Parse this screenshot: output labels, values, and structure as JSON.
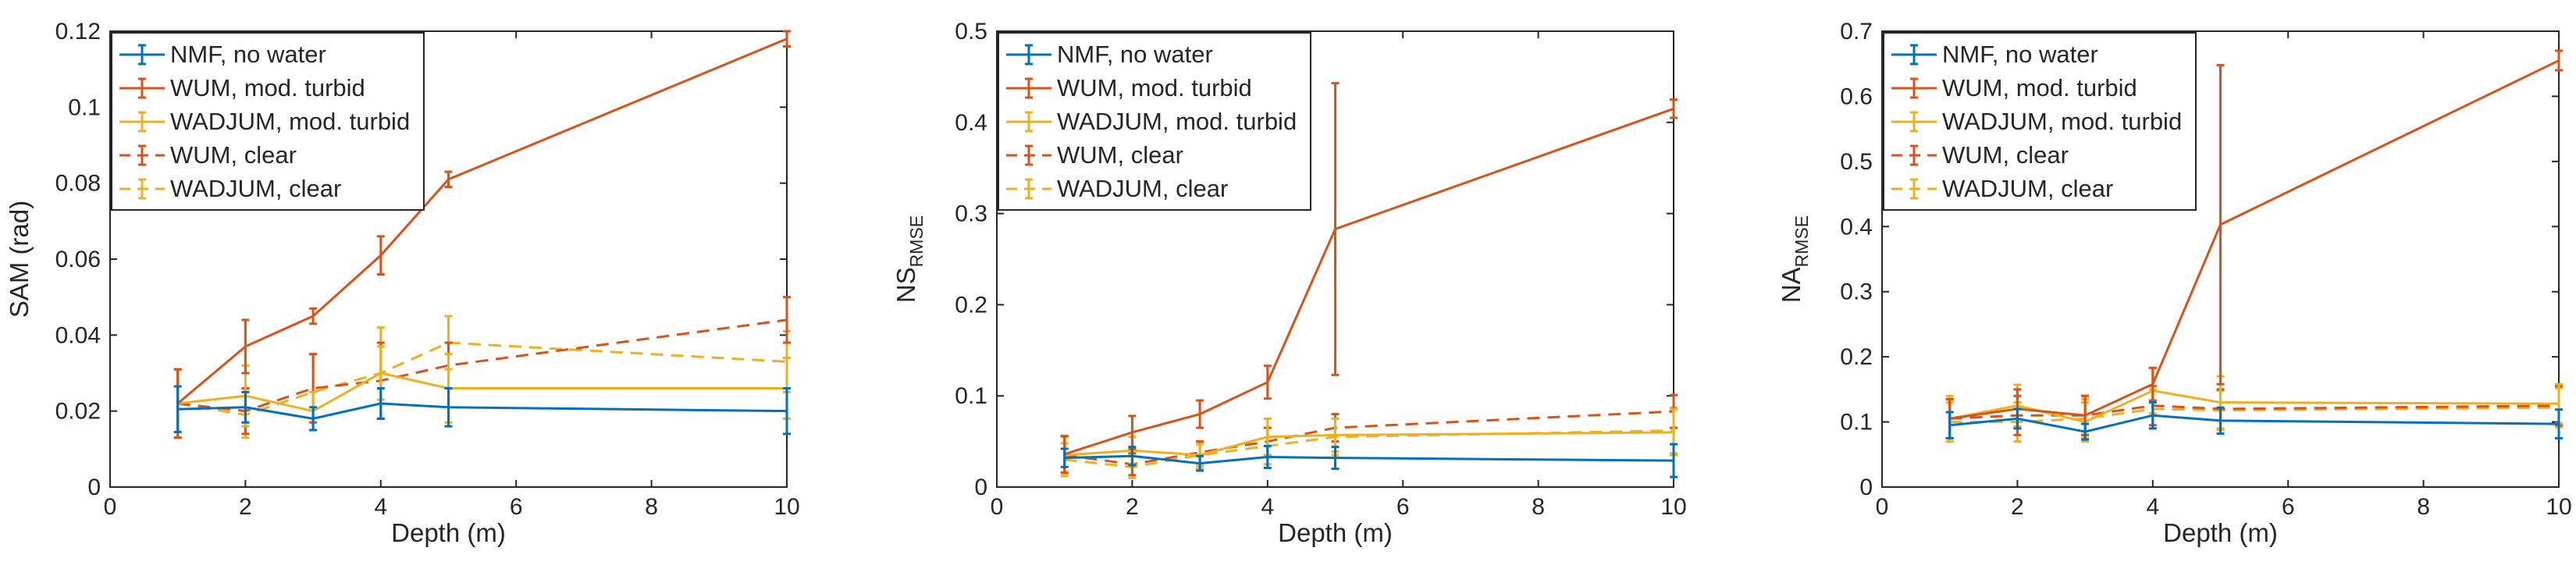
{
  "colors": {
    "blue": "#0072BD",
    "orange": "#D95319",
    "yellow": "#EDB120",
    "axis": "#262626",
    "legend_border": "#262626"
  },
  "chart_data": [
    {
      "type": "line",
      "xlabel": "Depth (m)",
      "ylabel": "SAM (rad)",
      "ylabel_sub": "",
      "xlim": [
        0,
        10
      ],
      "ylim": [
        0,
        0.12
      ],
      "xticks": [
        0,
        2,
        4,
        6,
        8,
        10
      ],
      "yticks": [
        0,
        0.02,
        0.04,
        0.06,
        0.08,
        0.1,
        0.12
      ],
      "ytick_labels": [
        "0",
        "0.02",
        "0.04",
        "0.06",
        "0.08",
        "0.1",
        "0.12"
      ],
      "legend_position": "top-left",
      "x": [
        1,
        2,
        3,
        4,
        5,
        10
      ],
      "series": [
        {
          "name": "NMF, no water",
          "color": "blue",
          "dash": "solid",
          "values": [
            0.0205,
            0.021,
            0.018,
            0.022,
            0.021,
            0.02
          ],
          "err": [
            0.006,
            0.004,
            0.003,
            0.004,
            0.005,
            0.006
          ]
        },
        {
          "name": "WUM, mod. turbid",
          "color": "orange",
          "dash": "solid",
          "values": [
            0.022,
            0.037,
            0.045,
            0.061,
            0.081,
            0.118
          ],
          "err": [
            0.009,
            0.007,
            0.002,
            0.005,
            0.002,
            0.002
          ]
        },
        {
          "name": "WADJUM, mod. turbid",
          "color": "yellow",
          "dash": "solid",
          "values": [
            0.022,
            0.024,
            0.02,
            0.03,
            0.026,
            0.026
          ],
          "err": [
            0.009,
            0.008,
            0.005,
            0.007,
            0.009,
            0.008
          ]
        },
        {
          "name": "WUM, clear",
          "color": "orange",
          "dash": "dashed",
          "values": [
            0.022,
            0.02,
            0.026,
            0.028,
            0.032,
            0.044
          ],
          "err": [
            0.009,
            0.006,
            0.009,
            0.01,
            0.006,
            0.006
          ]
        },
        {
          "name": "WADJUM, clear",
          "color": "yellow",
          "dash": "dashed",
          "values": [
            0.022,
            0.019,
            0.025,
            0.03,
            0.038,
            0.033
          ],
          "err": [
            0.009,
            0.006,
            0.01,
            0.012,
            0.007,
            0.008
          ]
        }
      ]
    },
    {
      "type": "line",
      "xlabel": "Depth (m)",
      "ylabel": "NS",
      "ylabel_sub": "RMSE",
      "xlim": [
        0,
        10
      ],
      "ylim": [
        0,
        0.5
      ],
      "xticks": [
        0,
        2,
        4,
        6,
        8,
        10
      ],
      "yticks": [
        0,
        0.1,
        0.2,
        0.3,
        0.4,
        0.5
      ],
      "ytick_labels": [
        "0",
        "0.1",
        "0.2",
        "0.3",
        "0.4",
        "0.5"
      ],
      "legend_position": "top-left",
      "x": [
        1,
        2,
        3,
        4,
        5,
        10
      ],
      "series": [
        {
          "name": "NMF, no water",
          "color": "blue",
          "dash": "solid",
          "values": [
            0.032,
            0.034,
            0.026,
            0.033,
            0.032,
            0.029
          ],
          "err": [
            0.01,
            0.01,
            0.008,
            0.012,
            0.012,
            0.018
          ]
        },
        {
          "name": "WUM, mod. turbid",
          "color": "orange",
          "dash": "solid",
          "values": [
            0.036,
            0.06,
            0.08,
            0.115,
            0.283,
            0.415
          ],
          "err": [
            0.02,
            0.018,
            0.015,
            0.018,
            0.16,
            0.01
          ]
        },
        {
          "name": "WADJUM, mod. turbid",
          "color": "yellow",
          "dash": "solid",
          "values": [
            0.035,
            0.04,
            0.035,
            0.055,
            0.057,
            0.06
          ],
          "err": [
            0.02,
            0.015,
            0.012,
            0.02,
            0.018,
            0.025
          ]
        },
        {
          "name": "WUM, clear",
          "color": "orange",
          "dash": "dashed",
          "values": [
            0.035,
            0.025,
            0.038,
            0.05,
            0.065,
            0.083
          ],
          "err": [
            0.02,
            0.012,
            0.012,
            0.015,
            0.015,
            0.018
          ]
        },
        {
          "name": "WADJUM, clear",
          "color": "yellow",
          "dash": "dashed",
          "values": [
            0.03,
            0.022,
            0.035,
            0.045,
            0.055,
            0.062
          ],
          "err": [
            0.018,
            0.012,
            0.015,
            0.02,
            0.02,
            0.025
          ]
        }
      ]
    },
    {
      "type": "line",
      "xlabel": "Depth (m)",
      "ylabel": "NA",
      "ylabel_sub": "RMSE",
      "xlim": [
        0,
        10
      ],
      "ylim": [
        0,
        0.7
      ],
      "xticks": [
        0,
        2,
        4,
        6,
        8,
        10
      ],
      "yticks": [
        0,
        0.1,
        0.2,
        0.3,
        0.4,
        0.5,
        0.6,
        0.7
      ],
      "ytick_labels": [
        "0",
        "0.1",
        "0.2",
        "0.3",
        "0.4",
        "0.5",
        "0.6",
        "0.7"
      ],
      "legend_position": "top-left",
      "x": [
        1,
        2,
        3,
        4,
        5,
        10
      ],
      "series": [
        {
          "name": "NMF, no water",
          "color": "blue",
          "dash": "solid",
          "values": [
            0.095,
            0.105,
            0.085,
            0.11,
            0.102,
            0.097
          ],
          "err": [
            0.02,
            0.015,
            0.012,
            0.02,
            0.02,
            0.022
          ]
        },
        {
          "name": "WUM, mod. turbid",
          "color": "orange",
          "dash": "solid",
          "values": [
            0.105,
            0.12,
            0.11,
            0.158,
            0.403,
            0.655
          ],
          "err": [
            0.03,
            0.03,
            0.03,
            0.025,
            0.245,
            0.015
          ]
        },
        {
          "name": "WADJUM, mod. turbid",
          "color": "yellow",
          "dash": "solid",
          "values": [
            0.105,
            0.125,
            0.1,
            0.148,
            0.13,
            0.128
          ],
          "err": [
            0.035,
            0.032,
            0.03,
            0.035,
            0.04,
            0.03
          ]
        },
        {
          "name": "WUM, clear",
          "color": "orange",
          "dash": "dashed",
          "values": [
            0.105,
            0.11,
            0.11,
            0.125,
            0.12,
            0.125
          ],
          "err": [
            0.03,
            0.03,
            0.03,
            0.03,
            0.03,
            0.03
          ]
        },
        {
          "name": "WADJUM, clear",
          "color": "yellow",
          "dash": "dashed",
          "values": [
            0.1,
            0.1,
            0.105,
            0.12,
            0.118,
            0.122
          ],
          "err": [
            0.03,
            0.03,
            0.03,
            0.03,
            0.03,
            0.03
          ]
        }
      ]
    }
  ]
}
